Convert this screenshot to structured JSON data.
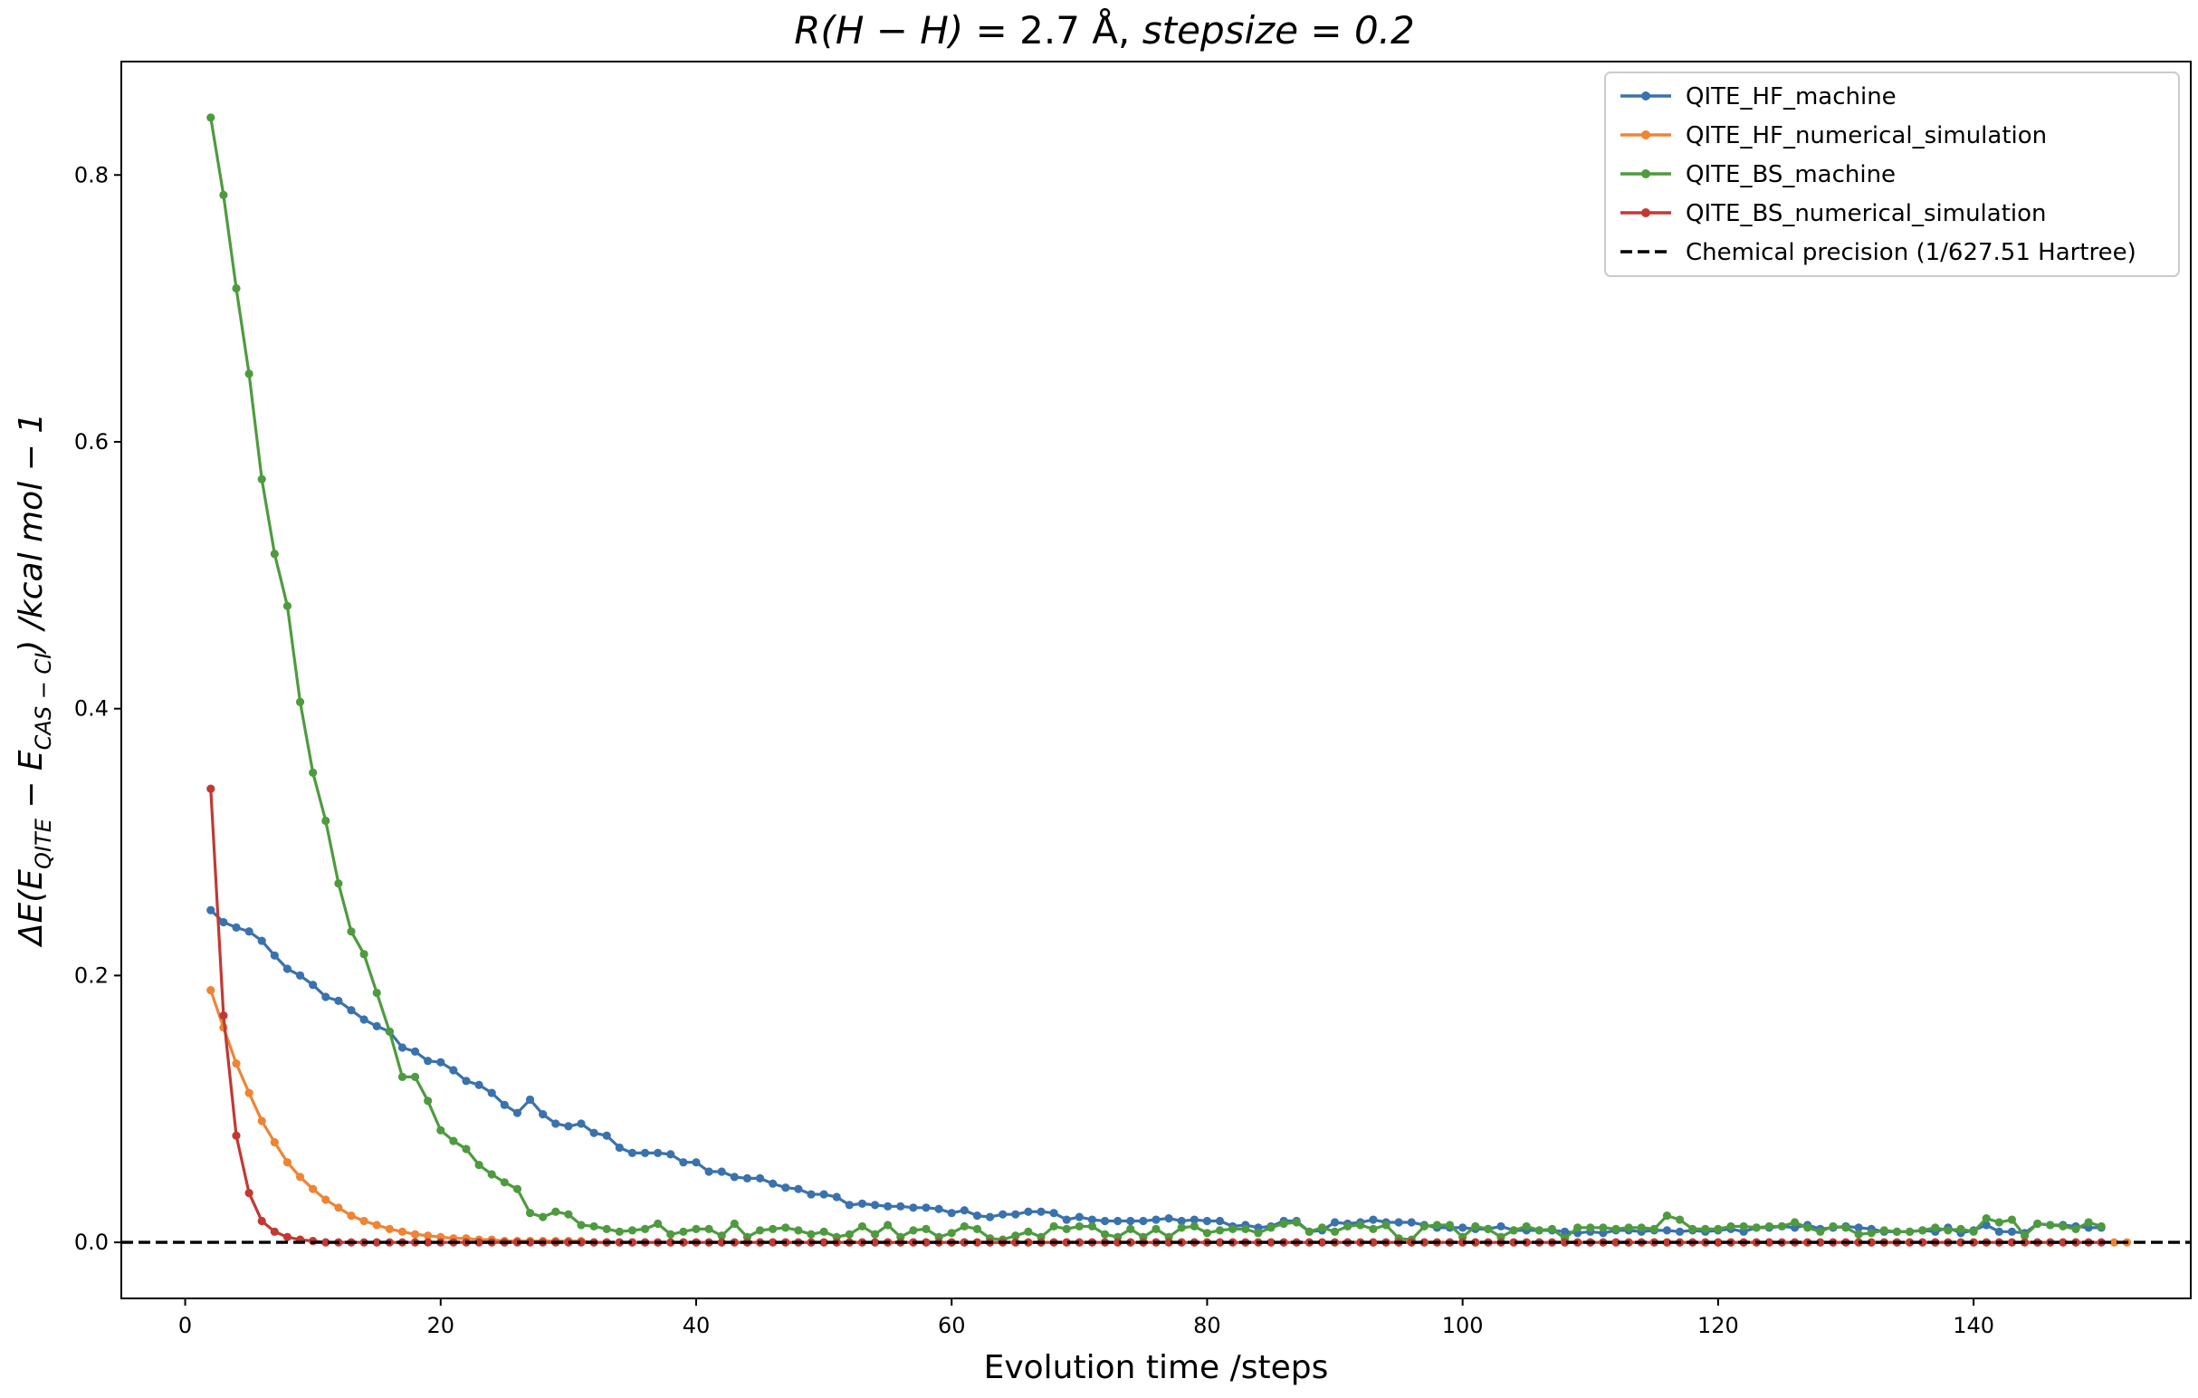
{
  "chart_data": {
    "type": "line",
    "title": {
      "lhs": "R(H − H)",
      "value": "= 2.7 Å,",
      "rest": "stepsize = 0.2"
    },
    "xlabel": "Evolution time /steps",
    "ylabel": {
      "prefix": "ΔE(E",
      "sub1": "QITE",
      "mid": " − E",
      "sub2": "CAS − CI",
      "suffix": ") /kcal mol − 1"
    },
    "xlim": [
      -5,
      157
    ],
    "ylim": [
      -0.042,
      0.885
    ],
    "xticks": [
      0,
      20,
      40,
      60,
      80,
      100,
      120,
      140
    ],
    "yticks": [
      0.0,
      0.2,
      0.4,
      0.6,
      0.8
    ],
    "ytick_labels": [
      "0.0",
      "0.2",
      "0.4",
      "0.6",
      "0.8"
    ],
    "legend_position": "top-right",
    "threshold": {
      "name": "Chemical precision (1/627.51 Hartree)",
      "value": 0.0,
      "color": "#000000",
      "style": "dashed"
    },
    "series": [
      {
        "name": "QITE_HF_machine",
        "color": "#3a72ad",
        "x_start": 2,
        "values": [
          0.249,
          0.24,
          0.236,
          0.233,
          0.226,
          0.215,
          0.205,
          0.2,
          0.193,
          0.184,
          0.181,
          0.174,
          0.167,
          0.162,
          0.158,
          0.146,
          0.143,
          0.136,
          0.135,
          0.129,
          0.121,
          0.118,
          0.112,
          0.103,
          0.097,
          0.107,
          0.096,
          0.089,
          0.087,
          0.089,
          0.082,
          0.08,
          0.071,
          0.067,
          0.067,
          0.067,
          0.066,
          0.06,
          0.06,
          0.053,
          0.053,
          0.049,
          0.048,
          0.048,
          0.044,
          0.041,
          0.04,
          0.036,
          0.036,
          0.034,
          0.028,
          0.029,
          0.028,
          0.027,
          0.027,
          0.026,
          0.026,
          0.025,
          0.022,
          0.024,
          0.02,
          0.019,
          0.021,
          0.021,
          0.023,
          0.023,
          0.022,
          0.017,
          0.019,
          0.017,
          0.016,
          0.016,
          0.016,
          0.016,
          0.017,
          0.018,
          0.016,
          0.017,
          0.016,
          0.016,
          0.012,
          0.013,
          0.011,
          0.012,
          0.016,
          0.016,
          0.008,
          0.009,
          0.015,
          0.014,
          0.015,
          0.017,
          0.015,
          0.015,
          0.015,
          0.013,
          0.011,
          0.011,
          0.011,
          0.01,
          0.01,
          0.012,
          0.009,
          0.009,
          0.009,
          0.009,
          0.008,
          0.007,
          0.008,
          0.007,
          0.009,
          0.009,
          0.008,
          0.009,
          0.009,
          0.008,
          0.009,
          0.008,
          0.009,
          0.01,
          0.008,
          0.011,
          0.011,
          0.012,
          0.011,
          0.013,
          0.01,
          0.011,
          0.012,
          0.011,
          0.01,
          0.008,
          0.008,
          0.008,
          0.009,
          0.008,
          0.011,
          0.007,
          0.009,
          0.013,
          0.008,
          0.008,
          0.007,
          0.014,
          0.013,
          0.013,
          0.012,
          0.011,
          0.011
        ]
      },
      {
        "name": "QITE_HF_numerical_simulation",
        "color": "#ee8535",
        "x_start": 2,
        "values": [
          0.189,
          0.161,
          0.134,
          0.112,
          0.091,
          0.075,
          0.06,
          0.049,
          0.04,
          0.032,
          0.026,
          0.02,
          0.016,
          0.013,
          0.01,
          0.008,
          0.006,
          0.005,
          0.004,
          0.003,
          0.003,
          0.002,
          0.002,
          0.001,
          0.001,
          0.001,
          0.001,
          0.001,
          0.001,
          0.001,
          0.0,
          0.0,
          0.0,
          0.0,
          0.0,
          0.0,
          0.0,
          0.0,
          0.0,
          0.0,
          0.0,
          0.0,
          0.0,
          0.0,
          0.0,
          0.0,
          0.0,
          0.0,
          0.0,
          0.0,
          0.0,
          0.0,
          0.0,
          0.0,
          0.0,
          0.0,
          0.0,
          0.0,
          0.0,
          0.0,
          0.0,
          0.0,
          0.0,
          0.0,
          0.0,
          0.0,
          0.0,
          0.0,
          0.0,
          0.0,
          0.0,
          0.0,
          0.0,
          0.0,
          0.0,
          0.0,
          0.0,
          0.0,
          0.0,
          0.0,
          0.0,
          0.0,
          0.0,
          0.0,
          0.0,
          0.0,
          0.0,
          0.0,
          0.0,
          0.0,
          0.0,
          0.0,
          0.0,
          0.0,
          0.0,
          0.0,
          0.0,
          0.0,
          0.0,
          0.0,
          0.0,
          0.0,
          0.0,
          0.0,
          0.0,
          0.0,
          0.0,
          0.0,
          0.0,
          0.0,
          0.0,
          0.0,
          0.0,
          0.0,
          0.0,
          0.0,
          0.0,
          0.0,
          0.0,
          0.0,
          0.0,
          0.0,
          0.0,
          0.0,
          0.0,
          0.0,
          0.0,
          0.0,
          0.0,
          0.0,
          0.0,
          0.0,
          0.0,
          0.0,
          0.0,
          0.0,
          0.0,
          0.0,
          0.0,
          0.0,
          0.0,
          0.0,
          0.0,
          0.0,
          0.0,
          0.0,
          0.0,
          0.0,
          0.0,
          0.0,
          0.0
        ]
      },
      {
        "name": "QITE_BS_machine",
        "color": "#4e9b3f",
        "x_start": 2,
        "values": [
          0.843,
          0.785,
          0.715,
          0.651,
          0.572,
          0.516,
          0.477,
          0.405,
          0.352,
          0.316,
          0.269,
          0.233,
          0.216,
          0.187,
          0.158,
          0.124,
          0.124,
          0.106,
          0.084,
          0.076,
          0.07,
          0.058,
          0.051,
          0.045,
          0.04,
          0.022,
          0.019,
          0.023,
          0.021,
          0.013,
          0.012,
          0.01,
          0.008,
          0.009,
          0.01,
          0.014,
          0.006,
          0.008,
          0.01,
          0.01,
          0.005,
          0.014,
          0.004,
          0.009,
          0.01,
          0.011,
          0.009,
          0.006,
          0.008,
          0.004,
          0.006,
          0.012,
          0.006,
          0.013,
          0.004,
          0.009,
          0.01,
          0.004,
          0.007,
          0.012,
          0.01,
          0.003,
          0.002,
          0.005,
          0.008,
          0.004,
          0.012,
          0.01,
          0.012,
          0.012,
          0.006,
          0.004,
          0.01,
          0.004,
          0.01,
          0.004,
          0.011,
          0.012,
          0.007,
          0.009,
          0.01,
          0.01,
          0.007,
          0.011,
          0.014,
          0.015,
          0.008,
          0.011,
          0.008,
          0.012,
          0.013,
          0.01,
          0.013,
          0.003,
          0.002,
          0.012,
          0.013,
          0.013,
          0.004,
          0.012,
          0.01,
          0.004,
          0.009,
          0.012,
          0.009,
          0.01,
          0.003,
          0.011,
          0.011,
          0.011,
          0.01,
          0.011,
          0.011,
          0.01,
          0.02,
          0.017,
          0.01,
          0.01,
          0.01,
          0.012,
          0.012,
          0.011,
          0.012,
          0.012,
          0.015,
          0.011,
          0.008,
          0.012,
          0.011,
          0.006,
          0.007,
          0.009,
          0.008,
          0.008,
          0.009,
          0.011,
          0.009,
          0.01,
          0.008,
          0.018,
          0.015,
          0.017,
          0.005,
          0.014,
          0.013,
          0.012,
          0.01,
          0.015,
          0.012
        ]
      },
      {
        "name": "QITE_BS_numerical_simulation",
        "color": "#c03a33",
        "x_start": 2,
        "values": [
          0.34,
          0.17,
          0.08,
          0.037,
          0.016,
          0.008,
          0.004,
          0.002,
          0.001,
          0.0,
          0.0,
          0.0,
          0.0,
          0.0,
          0.0,
          0.0,
          0.0,
          0.0,
          0.0,
          0.0,
          0.0,
          0.0,
          0.0,
          0.0,
          0.0,
          0.0,
          0.0,
          0.0,
          0.0,
          0.0,
          0.0,
          0.0,
          0.0,
          0.0,
          0.0,
          0.0,
          0.0,
          0.0,
          0.0,
          0.0,
          0.0,
          0.0,
          0.0,
          0.0,
          0.0,
          0.0,
          0.0,
          0.0,
          0.0,
          0.0,
          0.0,
          0.0,
          0.0,
          0.0,
          0.0,
          0.0,
          0.0,
          0.0,
          0.0,
          0.0,
          0.0,
          0.0,
          0.0,
          0.0,
          0.0,
          0.0,
          0.0,
          0.0,
          0.0,
          0.0,
          0.0,
          0.0,
          0.0,
          0.0,
          0.0,
          0.0,
          0.0,
          0.0,
          0.0,
          0.0,
          0.0,
          0.0,
          0.0,
          0.0,
          0.0,
          0.0,
          0.0,
          0.0,
          0.0,
          0.0,
          0.0,
          0.0,
          0.0,
          0.0,
          0.0,
          0.0,
          0.0,
          0.0,
          0.0,
          0.0,
          0.0,
          0.0,
          0.0,
          0.0,
          0.0,
          0.0,
          0.0,
          0.0,
          0.0,
          0.0,
          0.0,
          0.0,
          0.0,
          0.0,
          0.0,
          0.0,
          0.0,
          0.0,
          0.0,
          0.0,
          0.0,
          0.0,
          0.0,
          0.0,
          0.0,
          0.0,
          0.0,
          0.0,
          0.0,
          0.0,
          0.0,
          0.0,
          0.0,
          0.0,
          0.0,
          0.0,
          0.0,
          0.0,
          0.0,
          0.0,
          0.0,
          0.0,
          0.0,
          0.0,
          0.0,
          0.0,
          0.0,
          0.0,
          0.0
        ]
      }
    ]
  }
}
